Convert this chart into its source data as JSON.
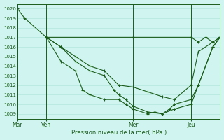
{
  "title": "Pression niveau de la mer( hPa )",
  "bg_color": "#d0f5f0",
  "grid_color": "#b8e8e0",
  "line_color": "#1a5c1a",
  "ylim": [
    1008.5,
    1020.5
  ],
  "yticks": [
    1009,
    1010,
    1011,
    1012,
    1013,
    1014,
    1015,
    1016,
    1017,
    1018,
    1019,
    1020
  ],
  "xlim": [
    0,
    168
  ],
  "xtick_positions": [
    0,
    24,
    96,
    144
  ],
  "xtick_labels": [
    "Mar",
    "Ven",
    "Mer",
    "Jeu"
  ],
  "vline_positions": [
    0,
    24,
    96,
    144
  ],
  "line_flat": {
    "x": [
      24,
      96,
      144,
      150,
      156,
      162,
      168
    ],
    "y": [
      1017,
      1017,
      1017,
      1016.5,
      1017,
      1016.5,
      1017
    ]
  },
  "line_steep": {
    "x": [
      0,
      6,
      24,
      36,
      48,
      60,
      72,
      84,
      96,
      108,
      120,
      130,
      144,
      150,
      162,
      168
    ],
    "y": [
      1020,
      1019,
      1017,
      1016,
      1015,
      1014,
      1013.5,
      1012,
      1011.8,
      1011.3,
      1010.8,
      1010.5,
      1012,
      1015.5,
      1016.5,
      1017
    ]
  },
  "line_mid": {
    "x": [
      24,
      36,
      48,
      60,
      72,
      80,
      84,
      90,
      96,
      108,
      120,
      130,
      144,
      150,
      162,
      168
    ],
    "y": [
      1017,
      1016,
      1014.5,
      1013.5,
      1013,
      1011.5,
      1011,
      1010.5,
      1009.8,
      1009.2,
      1009.0,
      1009.5,
      1010,
      1012,
      1016,
      1017
    ]
  },
  "line_low": {
    "x": [
      24,
      36,
      48,
      54,
      60,
      72,
      84,
      90,
      96,
      108,
      114,
      120,
      126,
      130,
      144,
      150,
      162,
      168
    ],
    "y": [
      1017,
      1014.5,
      1013.5,
      1011.5,
      1011.0,
      1010.5,
      1010.5,
      1010.0,
      1009.5,
      1009.0,
      1009.2,
      1009.0,
      1009.5,
      1010.0,
      1010.5,
      1012.0,
      1016.0,
      1017
    ]
  }
}
